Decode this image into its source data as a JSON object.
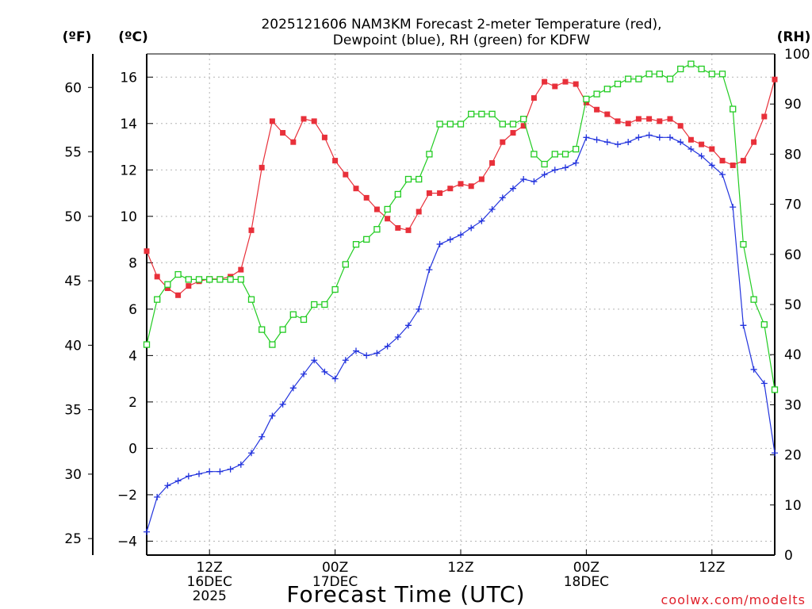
{
  "chart_data": {
    "type": "line",
    "title": "2025121606 NAM3KM Forecast 2-meter Temperature (red), Dewpoint (blue), RH (green) for KDFW",
    "title_lines": [
      "2025121606 NAM3KM Forecast 2-meter Temperature (red),",
      "Dewpoint (blue), RH (green) for KDFW"
    ],
    "xlabel": "Forecast Time (UTC)",
    "credit": "coolwx.com/modelts",
    "x_unit": "forecast hour from 2025-12-16 06Z",
    "xlim": [
      0,
      60
    ],
    "x_ticks": [
      {
        "x": 6,
        "lines": [
          "12Z",
          "16DEC",
          "2025"
        ]
      },
      {
        "x": 18,
        "lines": [
          "00Z",
          "17DEC"
        ]
      },
      {
        "x": 30,
        "lines": [
          "12Z"
        ]
      },
      {
        "x": 42,
        "lines": [
          "00Z",
          "18DEC"
        ]
      },
      {
        "x": 54,
        "lines": [
          "12Z"
        ]
      }
    ],
    "axes": {
      "celsius": {
        "label": "(ºC)",
        "ylim": [
          -4.6,
          17
        ],
        "ticks": [
          -4,
          -2,
          0,
          2,
          4,
          6,
          8,
          10,
          12,
          14,
          16
        ]
      },
      "fahrenheit": {
        "label": "(ºF)",
        "ylim": [
          23.72,
          62.6
        ],
        "ticks": [
          25,
          30,
          35,
          40,
          45,
          50,
          55,
          60
        ]
      },
      "rh": {
        "label": "(RH)",
        "ylim": [
          0,
          100
        ],
        "ticks": [
          0,
          10,
          20,
          30,
          40,
          50,
          60,
          70,
          80,
          90,
          100
        ]
      }
    },
    "series": [
      {
        "name": "Temperature",
        "axis": "celsius",
        "color": "#e8303a",
        "marker": "filled-square",
        "x": [
          0,
          1,
          2,
          3,
          4,
          5,
          6,
          7,
          8,
          9,
          10,
          11,
          12,
          13,
          14,
          15,
          16,
          17,
          18,
          19,
          20,
          21,
          22,
          23,
          24,
          25,
          26,
          27,
          28,
          29,
          30,
          31,
          32,
          33,
          34,
          35,
          36,
          37,
          38,
          39,
          40,
          41,
          42,
          43,
          44,
          45,
          46,
          47,
          48,
          49,
          50,
          51,
          52,
          53,
          54,
          55,
          56,
          57,
          58,
          59,
          60
        ],
        "values": [
          8.5,
          7.4,
          6.9,
          6.6,
          7.0,
          7.2,
          7.3,
          7.3,
          7.4,
          7.7,
          9.4,
          12.1,
          14.1,
          13.6,
          13.2,
          14.2,
          14.1,
          13.4,
          12.4,
          11.8,
          11.2,
          10.8,
          10.3,
          9.9,
          9.5,
          9.4,
          10.2,
          11.0,
          11.0,
          11.2,
          11.4,
          11.3,
          11.6,
          12.3,
          13.2,
          13.6,
          13.9,
          15.1,
          15.8,
          15.6,
          15.8,
          15.7,
          14.9,
          14.6,
          14.4,
          14.1,
          14.0,
          14.2,
          14.2,
          14.1,
          14.2,
          13.9,
          13.3,
          13.1,
          12.9,
          12.4,
          12.2,
          12.4,
          13.2,
          14.3,
          15.9
        ]
      },
      {
        "name": "Dewpoint",
        "axis": "celsius",
        "color": "#2233dd",
        "marker": "plus",
        "x": [
          0,
          1,
          2,
          3,
          4,
          5,
          6,
          7,
          8,
          9,
          10,
          11,
          12,
          13,
          14,
          15,
          16,
          17,
          18,
          19,
          20,
          21,
          22,
          23,
          24,
          25,
          26,
          27,
          28,
          29,
          30,
          31,
          32,
          33,
          34,
          35,
          36,
          37,
          38,
          39,
          40,
          41,
          42,
          43,
          44,
          45,
          46,
          47,
          48,
          49,
          50,
          51,
          52,
          53,
          54,
          55,
          56,
          57,
          58,
          59,
          60
        ],
        "values": [
          -3.6,
          -2.1,
          -1.6,
          -1.4,
          -1.2,
          -1.1,
          -1.0,
          -1.0,
          -0.9,
          -0.7,
          -0.2,
          0.5,
          1.4,
          1.9,
          2.6,
          3.2,
          3.8,
          3.3,
          3.0,
          3.8,
          4.2,
          4.0,
          4.1,
          4.4,
          4.8,
          5.3,
          6.0,
          7.7,
          8.8,
          9.0,
          9.2,
          9.5,
          9.8,
          10.3,
          10.8,
          11.2,
          11.6,
          11.5,
          11.8,
          12.0,
          12.1,
          12.3,
          13.4,
          13.3,
          13.2,
          13.1,
          13.2,
          13.4,
          13.5,
          13.4,
          13.4,
          13.2,
          12.9,
          12.6,
          12.2,
          11.8,
          10.4,
          5.3,
          3.4,
          2.8,
          -0.2
        ]
      },
      {
        "name": "RH",
        "axis": "rh",
        "color": "#22cc22",
        "marker": "open-square",
        "x": [
          0,
          1,
          2,
          3,
          4,
          5,
          6,
          7,
          8,
          9,
          10,
          11,
          12,
          13,
          14,
          15,
          16,
          17,
          18,
          19,
          20,
          21,
          22,
          23,
          24,
          25,
          26,
          27,
          28,
          29,
          30,
          31,
          32,
          33,
          34,
          35,
          36,
          37,
          38,
          39,
          40,
          41,
          42,
          43,
          44,
          45,
          46,
          47,
          48,
          49,
          50,
          51,
          52,
          53,
          54,
          55,
          56,
          57,
          58,
          59,
          60
        ],
        "values": [
          42,
          51,
          54,
          56,
          55,
          55,
          55,
          55,
          55,
          55,
          51,
          45,
          42,
          45,
          48,
          47,
          50,
          50,
          53,
          58,
          62,
          63,
          65,
          69,
          72,
          75,
          75,
          80,
          86,
          86,
          86,
          88,
          88,
          88,
          86,
          86,
          87,
          80,
          78,
          80,
          80,
          81,
          91,
          92,
          93,
          94,
          95,
          95,
          96,
          96,
          95,
          97,
          98,
          97,
          96,
          96,
          89,
          62,
          51,
          46,
          33
        ]
      }
    ]
  }
}
